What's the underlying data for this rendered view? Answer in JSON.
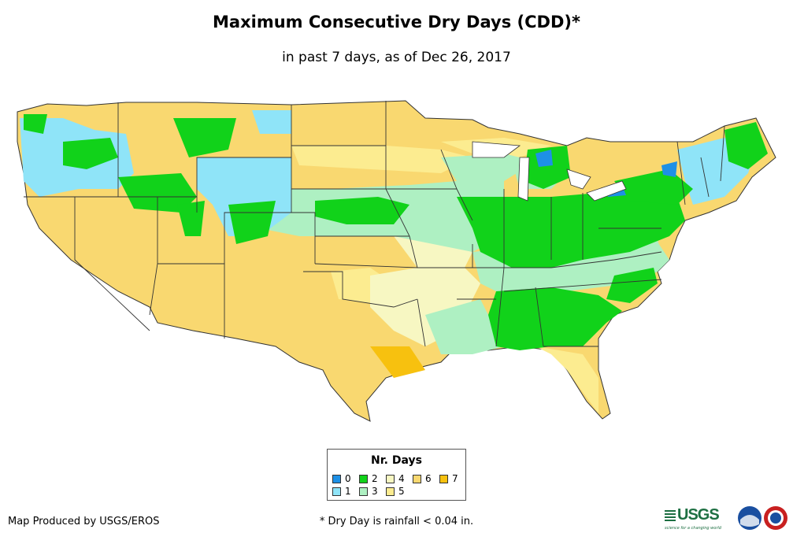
{
  "header": {
    "title": "Maximum Consecutive Dry Days (CDD)*",
    "subtitle": "in past 7 days, as of Dec 26, 2017"
  },
  "legend": {
    "title": "Nr. Days",
    "items": [
      {
        "label": "0",
        "color": "#1e90e6"
      },
      {
        "label": "1",
        "color": "#8fe4f8"
      },
      {
        "label": "2",
        "color": "#11d21a"
      },
      {
        "label": "3",
        "color": "#aef0c2"
      },
      {
        "label": "4",
        "color": "#f7f7c2"
      },
      {
        "label": "5",
        "color": "#fcec90"
      },
      {
        "label": "6",
        "color": "#f9d870"
      },
      {
        "label": "7",
        "color": "#f7c10f"
      }
    ]
  },
  "footer": {
    "credit": "Map Produced by USGS/EROS",
    "footnote": "* Dry Day is rainfall < 0.04 in.",
    "logos": {
      "usgs": "USGS",
      "usgs_tagline": "science for a changing world",
      "noaa": "noaa-logo",
      "nws": "nws-logo"
    }
  }
}
